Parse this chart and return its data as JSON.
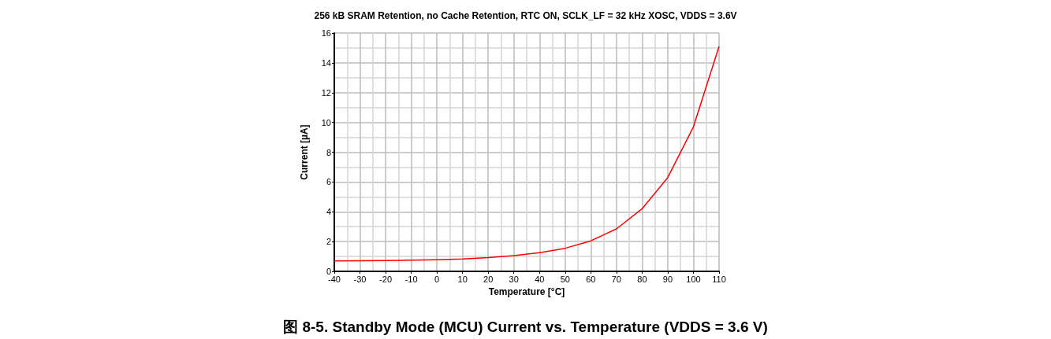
{
  "chart_data": {
    "type": "line",
    "title": "256 kB SRAM Retention, no Cache Retention, RTC ON, SCLK_LF = 32 kHz XOSC, VDDS = 3.6V",
    "xlabel": "Temperature [°C]",
    "ylabel": "Current [µA]",
    "annotations": [
      "图 8-5. Standby Mode (MCU) Current vs. Temperature (VDDS = 3.6 V)"
    ],
    "x": [
      -40,
      -30,
      -20,
      -10,
      0,
      10,
      20,
      30,
      40,
      50,
      60,
      70,
      80,
      90,
      100,
      110
    ],
    "series": [
      {
        "color": "#ff0000",
        "values": [
          0.7,
          0.71,
          0.73,
          0.75,
          0.78,
          0.83,
          0.92,
          1.05,
          1.25,
          1.55,
          2.05,
          2.85,
          4.2,
          6.3,
          9.7,
          15.1
        ]
      }
    ],
    "xlim": [
      -40,
      110
    ],
    "xticks": [
      -40,
      -30,
      -20,
      -10,
      0,
      10,
      20,
      30,
      40,
      50,
      60,
      70,
      80,
      90,
      100,
      110
    ],
    "ylim": [
      0,
      16
    ],
    "yticks": [
      0,
      2,
      4,
      6,
      8,
      10,
      12,
      14,
      16
    ],
    "grid": true,
    "marker": "none",
    "line_style": "solid"
  }
}
